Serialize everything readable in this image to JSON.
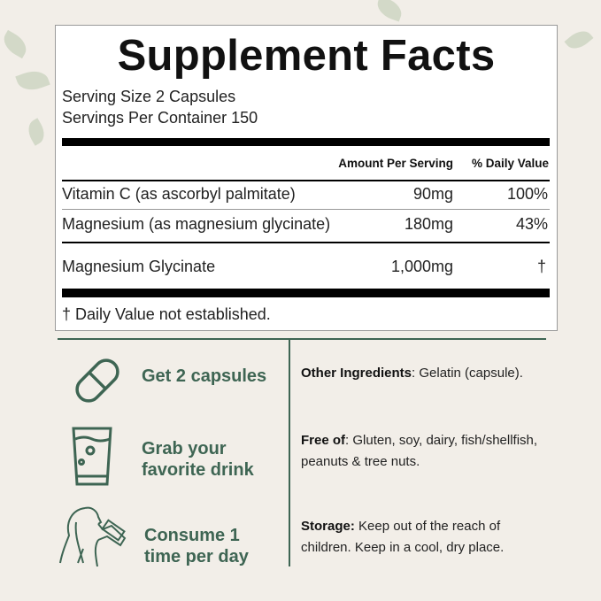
{
  "facts": {
    "title": "Supplement Facts",
    "serving_size": "Serving Size 2 Capsules",
    "servings_per_container": "Servings Per Container 150",
    "col_amount": "Amount Per Serving",
    "col_dv": "% Daily Value",
    "rows": [
      {
        "name": "Vitamin C (as ascorbyl palmitate)",
        "amount": "90mg",
        "dv": "100%"
      },
      {
        "name": "Magnesium (as magnesium glycinate)",
        "amount": "180mg",
        "dv": "43%"
      },
      {
        "name": "Magnesium Glycinate",
        "amount": "1,000mg",
        "dv": "†"
      }
    ],
    "footnote": "† Daily Value not established."
  },
  "steps": [
    {
      "icon": "capsule-icon",
      "line1": "Get 2 capsules",
      "line2": ""
    },
    {
      "icon": "glass-icon",
      "line1": "Grab your",
      "line2": "favorite drink"
    },
    {
      "icon": "woman-drinking-icon",
      "line1": "Consume 1",
      "line2": "time per day"
    }
  ],
  "info": [
    {
      "label": "Other Ingredients",
      "text": ": Gelatin (capsule)."
    },
    {
      "label": "Free of",
      "text": ": Gluten, soy, dairy, fish/shellfish, peanuts & tree nuts."
    },
    {
      "label": "Storage:",
      "text": " Keep out of the reach of children. Keep in a cool, dry place."
    }
  ],
  "colors": {
    "accent": "#3e6553",
    "background": "#f2eee8"
  }
}
